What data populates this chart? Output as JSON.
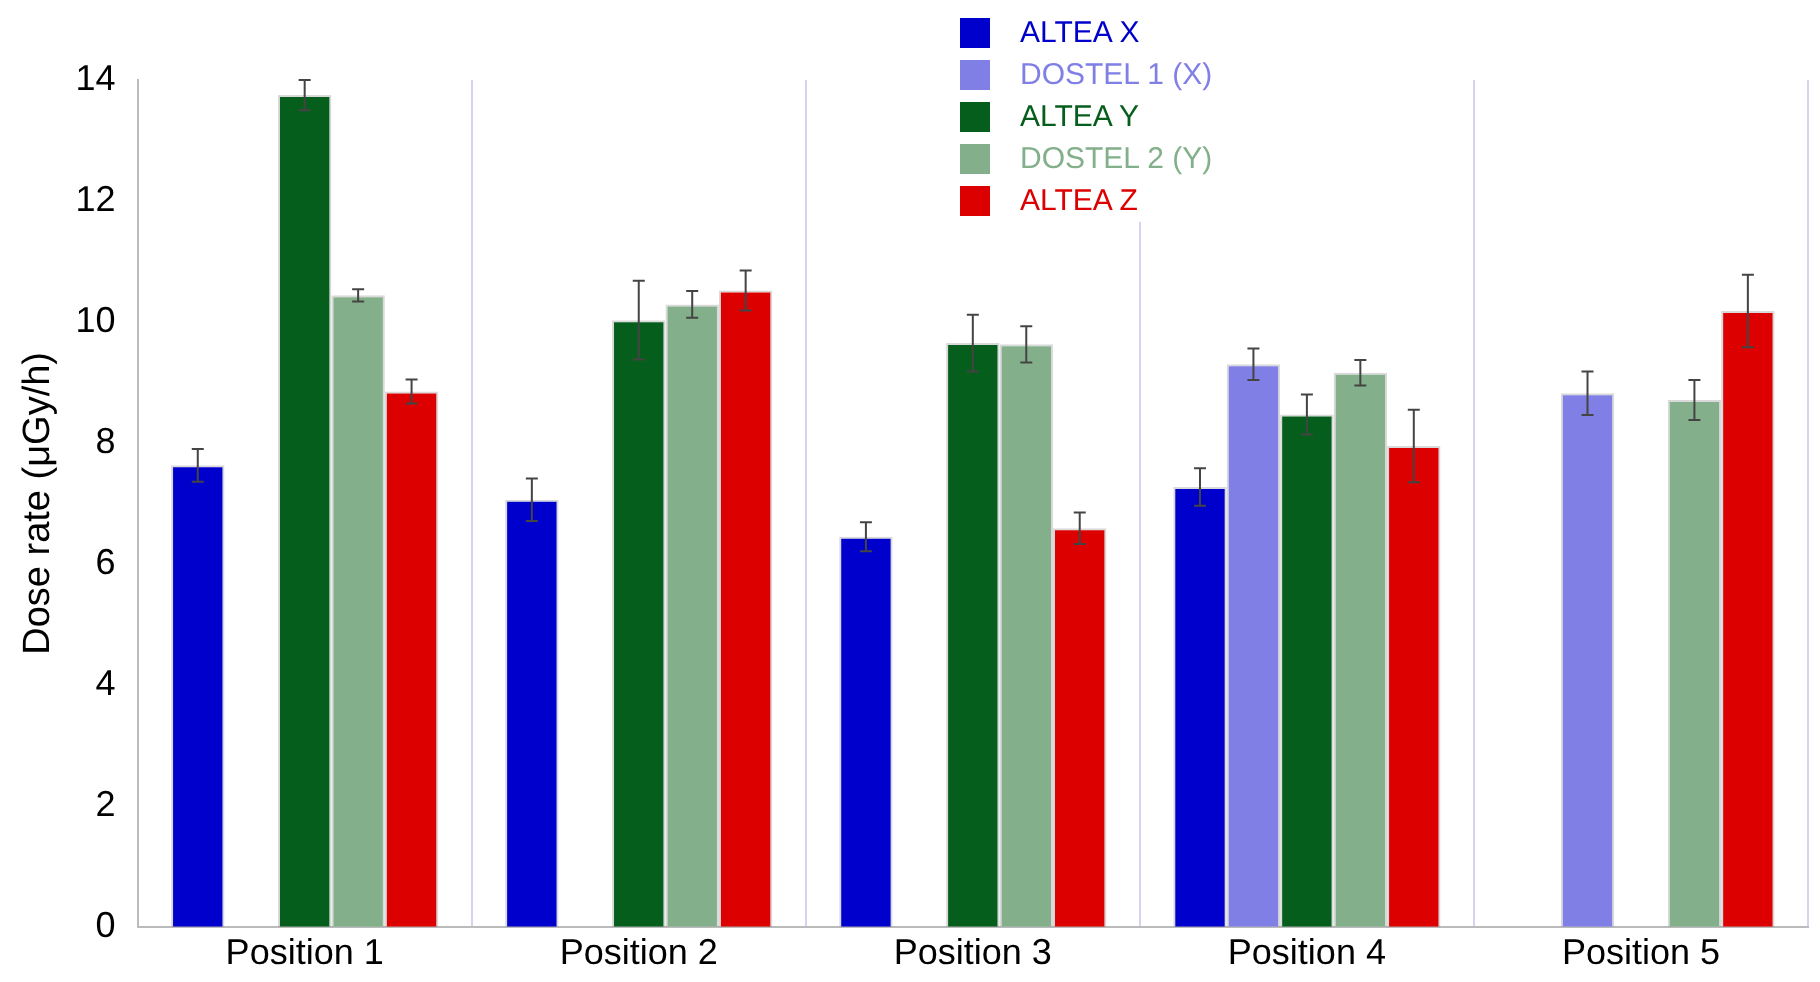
{
  "chart_data": {
    "type": "bar",
    "ylabel": "Dose rate (μGy/h)",
    "categories": [
      "Position 1",
      "Position 2",
      "Position 3",
      "Position 4",
      "Position 5"
    ],
    "series": [
      {
        "name": "ALTEA X",
        "color": "#0000cc",
        "values": [
          7.63,
          7.06,
          6.45,
          7.27,
          null
        ],
        "errors": [
          0.27,
          0.35,
          0.24,
          0.31,
          null
        ]
      },
      {
        "name": "DOSTEL 1 (X)",
        "color": "#7f7fe6",
        "values": [
          null,
          null,
          null,
          9.3,
          8.82
        ],
        "errors": [
          null,
          null,
          null,
          0.26,
          0.36
        ]
      },
      {
        "name": "ALTEA Y",
        "color": "#065e1d",
        "values": [
          13.75,
          10.03,
          9.65,
          8.47,
          null
        ],
        "errors": [
          0.25,
          0.65,
          0.47,
          0.33,
          null
        ]
      },
      {
        "name": "DOSTEL 2 (Y)",
        "color": "#83b08b",
        "values": [
          10.44,
          10.29,
          9.63,
          9.16,
          8.71
        ],
        "errors": [
          0.1,
          0.22,
          0.3,
          0.21,
          0.33
        ]
      },
      {
        "name": "ALTEA Z",
        "color": "#dd0000",
        "values": [
          8.85,
          10.52,
          6.59,
          7.95,
          10.18
        ],
        "errors": [
          0.2,
          0.33,
          0.26,
          0.6,
          0.6
        ]
      }
    ],
    "ylim": [
      0,
      14
    ],
    "yticks": [
      0,
      2,
      4,
      6,
      8,
      10,
      12,
      14
    ],
    "grid": "x",
    "legend": "top"
  }
}
